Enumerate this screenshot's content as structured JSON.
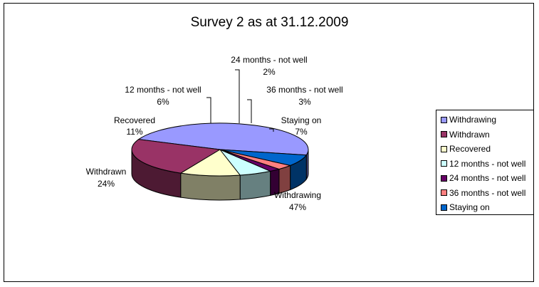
{
  "chart_data": {
    "type": "pie",
    "title": "Survey 2 as at 31.12.2009",
    "slices": [
      {
        "label": "Withdrawing",
        "value": 47,
        "display": "47%",
        "color": "#9999FF"
      },
      {
        "label": "Withdrawn",
        "value": 24,
        "display": "24%",
        "color": "#993366"
      },
      {
        "label": "Recovered",
        "value": 11,
        "display": "11%",
        "color": "#FFFFCC"
      },
      {
        "label": "12 months - not well",
        "value": 6,
        "display": "6%",
        "color": "#CCFFFF"
      },
      {
        "label": "24 months - not well",
        "value": 2,
        "display": "2%",
        "color": "#660066"
      },
      {
        "label": "36 months - not well",
        "value": 3,
        "display": "3%",
        "color": "#FF8080"
      },
      {
        "label": "Staying on",
        "value": 7,
        "display": "7%",
        "color": "#0066CC"
      }
    ],
    "legend_position": "right",
    "three_d": true
  }
}
